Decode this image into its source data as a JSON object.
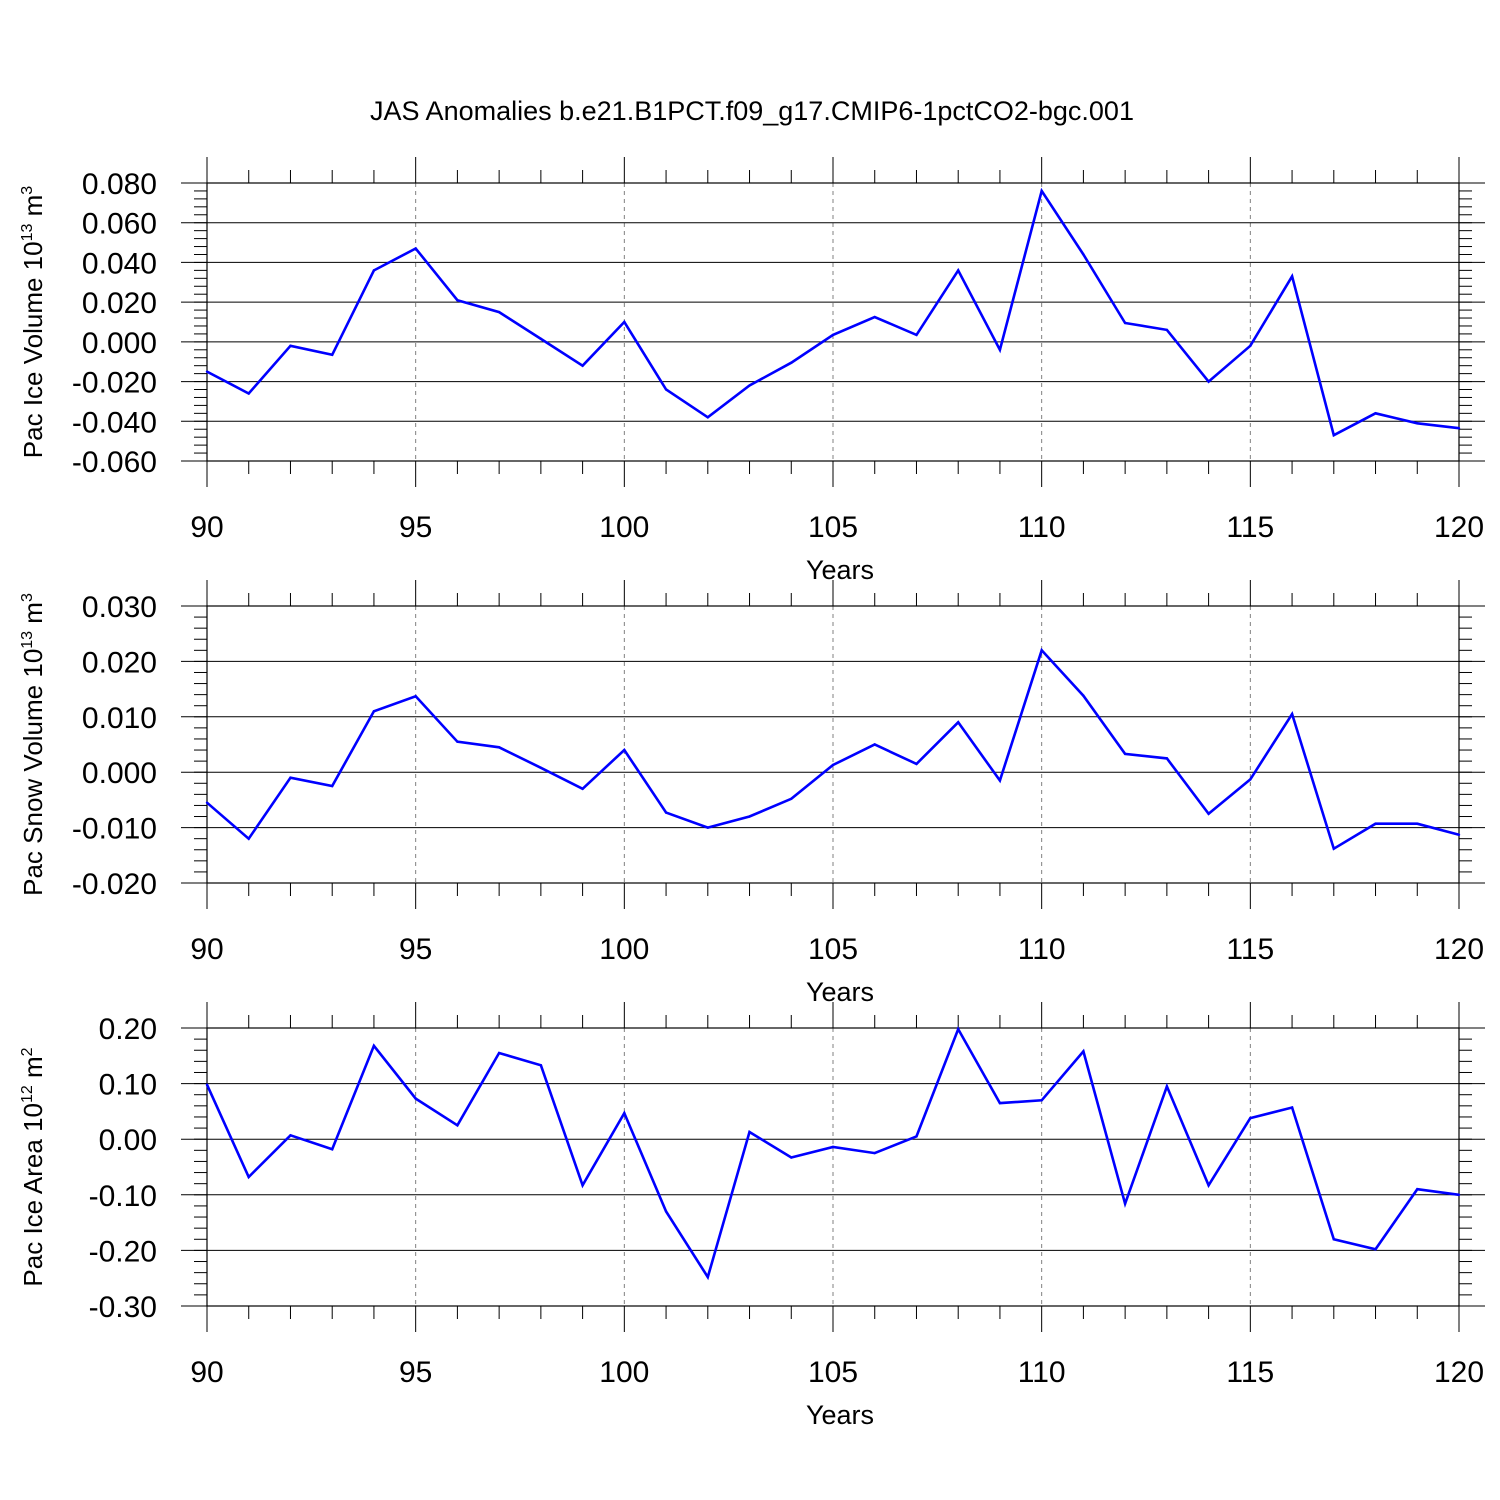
{
  "title": "JAS Anomalies b.e21.B1PCT.f09_g17.CMIP6-1pctCO2-bgc.001",
  "colors": {
    "line": "#0000ff",
    "axis": "#000000",
    "grid": "#808080",
    "background": "#ffffff"
  },
  "chart_data": [
    {
      "type": "line",
      "ylabel_main": "Pac Ice Volume 10",
      "ylabel_exp": "13",
      "ylabel_unit": " m",
      "ylabel_unit_exp": "3",
      "xlabel": "Years",
      "xlim": [
        90,
        120
      ],
      "ylim": [
        -0.06,
        0.08
      ],
      "x_ticks": [
        "90",
        "95",
        "100",
        "105",
        "110",
        "115",
        "120"
      ],
      "y_ticks": [
        "0.080",
        "0.060",
        "0.040",
        "0.020",
        "0.000",
        "-0.020",
        "-0.040",
        "-0.060"
      ],
      "y_tick_values": [
        0.08,
        0.06,
        0.04,
        0.02,
        0.0,
        -0.02,
        -0.04,
        -0.06
      ],
      "y_minor_step": 0.004,
      "grid": "x-major-dashed",
      "x": [
        90,
        91,
        92,
        93,
        94,
        95,
        96,
        97,
        98,
        99,
        100,
        101,
        102,
        103,
        104,
        105,
        106,
        107,
        108,
        109,
        110,
        111,
        112,
        113,
        114,
        115,
        116,
        117,
        118,
        119,
        120
      ],
      "values": [
        -0.015,
        -0.026,
        -0.002,
        -0.0065,
        0.036,
        0.047,
        0.021,
        0.015,
        0.0015,
        -0.012,
        0.01,
        -0.024,
        -0.038,
        -0.022,
        -0.0105,
        0.0035,
        0.0125,
        0.0035,
        0.036,
        -0.004,
        0.076,
        0.044,
        0.0095,
        0.006,
        -0.02,
        -0.002,
        0.033,
        -0.047,
        -0.036,
        -0.041,
        -0.0435
      ]
    },
    {
      "type": "line",
      "ylabel_main": "Pac Snow Volume 10",
      "ylabel_exp": "13",
      "ylabel_unit": " m",
      "ylabel_unit_exp": "3",
      "xlabel": "Years",
      "xlim": [
        90,
        120
      ],
      "ylim": [
        -0.02,
        0.03
      ],
      "x_ticks": [
        "90",
        "95",
        "100",
        "105",
        "110",
        "115",
        "120"
      ],
      "y_ticks": [
        "0.030",
        "0.020",
        "0.010",
        "0.000",
        "-0.010",
        "-0.020"
      ],
      "y_tick_values": [
        0.03,
        0.02,
        0.01,
        0.0,
        -0.01,
        -0.02
      ],
      "y_minor_step": 0.002,
      "grid": "x-major-dashed",
      "x": [
        90,
        91,
        92,
        93,
        94,
        95,
        96,
        97,
        98,
        99,
        100,
        101,
        102,
        103,
        104,
        105,
        106,
        107,
        108,
        109,
        110,
        111,
        112,
        113,
        114,
        115,
        116,
        117,
        118,
        119,
        120
      ],
      "values": [
        -0.0055,
        -0.012,
        -0.001,
        -0.0025,
        0.011,
        0.0137,
        0.0055,
        0.0045,
        0.0008,
        -0.003,
        0.004,
        -0.0073,
        -0.01,
        -0.008,
        -0.0048,
        0.0013,
        0.005,
        0.0015,
        0.009,
        -0.0015,
        0.022,
        0.0138,
        0.0033,
        0.0025,
        -0.0075,
        -0.0013,
        0.0105,
        -0.0138,
        -0.0093,
        -0.0093,
        -0.0113
      ]
    },
    {
      "type": "line",
      "ylabel_main": "Pac Ice Area 10",
      "ylabel_exp": "12",
      "ylabel_unit": " m",
      "ylabel_unit_exp": "2",
      "xlabel": "Years",
      "xlim": [
        90,
        120
      ],
      "ylim": [
        -0.3,
        0.2
      ],
      "x_ticks": [
        "90",
        "95",
        "100",
        "105",
        "110",
        "115",
        "120"
      ],
      "y_ticks": [
        "0.20",
        "0.10",
        "0.00",
        "-0.10",
        "-0.20",
        "-0.30"
      ],
      "y_tick_values": [
        0.2,
        0.1,
        0.0,
        -0.1,
        -0.2,
        -0.3
      ],
      "y_minor_step": 0.02,
      "grid": "x-major-dashed",
      "x": [
        90,
        91,
        92,
        93,
        94,
        95,
        96,
        97,
        98,
        99,
        100,
        101,
        102,
        103,
        104,
        105,
        106,
        107,
        108,
        109,
        110,
        111,
        112,
        113,
        114,
        115,
        116,
        117,
        118,
        119,
        120
      ],
      "values": [
        0.098,
        -0.068,
        0.007,
        -0.018,
        0.168,
        0.073,
        0.025,
        0.155,
        0.133,
        -0.083,
        0.047,
        -0.13,
        -0.248,
        0.013,
        -0.033,
        -0.014,
        -0.025,
        0.005,
        0.198,
        0.065,
        0.07,
        0.158,
        -0.116,
        0.095,
        -0.083,
        0.038,
        0.057,
        -0.18,
        -0.198,
        -0.09,
        -0.1
      ]
    }
  ]
}
